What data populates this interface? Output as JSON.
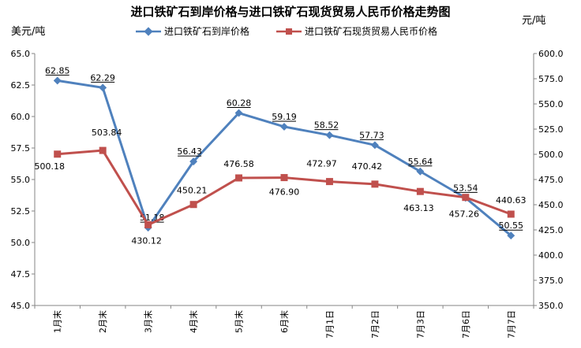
{
  "chart_data": {
    "type": "line",
    "title": "进口铁矿石到岸价格与进口铁矿石现货贸易人民币价格走势图",
    "ylabel_left": "美元/吨",
    "ylabel_right": "元/吨",
    "categories": [
      "1月末",
      "2月末",
      "3月末",
      "4月末",
      "5月末",
      "6月末",
      "7月1日",
      "7月2日",
      "7月3日",
      "7月6日",
      "7月7日"
    ],
    "y_left": {
      "min": 45.0,
      "max": 65.0,
      "step": 2.5,
      "ticks": [
        "45.0",
        "47.5",
        "50.0",
        "52.5",
        "55.0",
        "57.5",
        "60.0",
        "62.5",
        "65.0"
      ]
    },
    "y_right": {
      "min": 350.0,
      "max": 600.0,
      "step": 25,
      "ticks": [
        "350.0",
        "375.0",
        "400.0",
        "425.0",
        "450.0",
        "475.0",
        "500.0",
        "525.0",
        "550.0",
        "575.0",
        "600.0"
      ]
    },
    "legend_position": "top-center",
    "grid": false,
    "series": [
      {
        "name": "进口铁矿石到岸价格",
        "axis": "left",
        "color": "#4F81BD",
        "marker": "diamond",
        "values": [
          62.85,
          62.29,
          51.18,
          56.43,
          60.28,
          59.19,
          58.52,
          57.73,
          55.64,
          53.54,
          50.55
        ],
        "labels": [
          "62.85",
          "62.29",
          "51.18",
          "56.43",
          "60.28",
          "59.19",
          "58.52",
          "57.73",
          "55.64",
          "53.54",
          "50.55"
        ]
      },
      {
        "name": "进口铁矿石现货贸易人民币价格",
        "axis": "right",
        "color": "#C0504D",
        "marker": "square",
        "values": [
          500.18,
          503.84,
          430.12,
          450.21,
          476.58,
          476.9,
          472.97,
          470.42,
          463.13,
          457.26,
          440.63
        ],
        "labels": [
          "500.18",
          "503.84",
          "430.12",
          "450.21",
          "476.58",
          "476.90",
          "472.97",
          "470.42",
          "463.13",
          "457.26",
          "440.63"
        ]
      }
    ]
  }
}
